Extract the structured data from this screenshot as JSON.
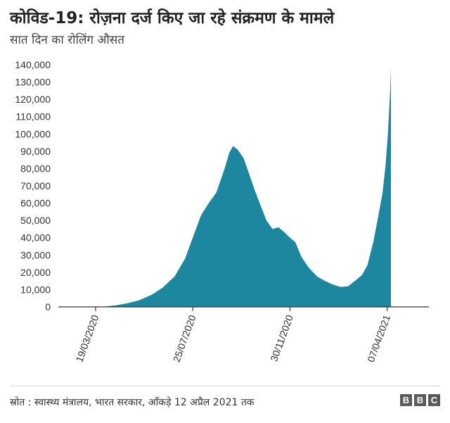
{
  "title": "कोविड-19: रोज़ना दर्ज किए जा रहे संक्रमण के मामले",
  "subtitle": "सात दिन का रोलिंग औसत",
  "source": "स्रोत : स्वास्थ्य मंत्रालय, भारत सरकार, आँकड़े 12 अप्रैल 2021 तक",
  "logo": [
    "B",
    "B",
    "C"
  ],
  "colors": {
    "area": "#1d87a0",
    "axis": "#333333",
    "text": "#222222"
  },
  "chart_data": {
    "type": "area",
    "title": "कोविड-19: रोज़ना दर्ज किए जा रहे संक्रमण के मामले",
    "subtitle": "सात दिन का रोलिंग औसत",
    "xlabel": "",
    "ylabel": "",
    "ylim": [
      0,
      140000
    ],
    "y_ticks": [
      0,
      10000,
      20000,
      30000,
      40000,
      50000,
      60000,
      70000,
      80000,
      90000,
      100000,
      110000,
      120000,
      130000,
      140000
    ],
    "y_tick_labels": [
      "0",
      "10,000",
      "20,000",
      "30,000",
      "40,000",
      "50,000",
      "60,000",
      "70,000",
      "80,000",
      "90,000",
      "100,000",
      "110,000",
      "120,000",
      "130,000",
      "140,000"
    ],
    "x_range": [
      "2020-01-30",
      "2021-06-01"
    ],
    "x_tick_labels": [
      "19/03/2020",
      "25/07/2020",
      "30/11/2020",
      "07/04/2021"
    ],
    "x_tick_dates": [
      "2020-03-19",
      "2020-07-25",
      "2020-11-30",
      "2021-04-07"
    ],
    "grid": false,
    "series": [
      {
        "dates": [
          "2020-01-30",
          "2020-03-19",
          "2020-04-01",
          "2020-04-15",
          "2020-05-01",
          "2020-05-15",
          "2020-06-01",
          "2020-06-15",
          "2020-07-01",
          "2020-07-15",
          "2020-07-25",
          "2020-08-05",
          "2020-08-15",
          "2020-08-25",
          "2020-09-05",
          "2020-09-11",
          "2020-09-16",
          "2020-09-22",
          "2020-09-30",
          "2020-10-08",
          "2020-10-15",
          "2020-10-22",
          "2020-10-30",
          "2020-11-07",
          "2020-11-15",
          "2020-11-23",
          "2020-11-30",
          "2020-12-07",
          "2020-12-15",
          "2020-12-25",
          "2021-01-05",
          "2021-01-15",
          "2021-01-25",
          "2021-02-05",
          "2021-02-15",
          "2021-02-25",
          "2021-03-05",
          "2021-03-12",
          "2021-03-20",
          "2021-03-27",
          "2021-04-01",
          "2021-04-05",
          "2021-04-08",
          "2021-04-11",
          "2021-04-12"
        ],
        "values": [
          0,
          0,
          200,
          900,
          2200,
          3800,
          7000,
          11000,
          17500,
          28000,
          40000,
          53000,
          60000,
          66000,
          80000,
          89000,
          93000,
          91000,
          86000,
          76000,
          67000,
          59000,
          50000,
          45000,
          46000,
          43000,
          40000,
          37500,
          29000,
          22500,
          17500,
          15000,
          13000,
          11500,
          12000,
          15500,
          18500,
          24000,
          38000,
          54000,
          66000,
          82000,
          100000,
          125000,
          138000
        ]
      }
    ]
  }
}
